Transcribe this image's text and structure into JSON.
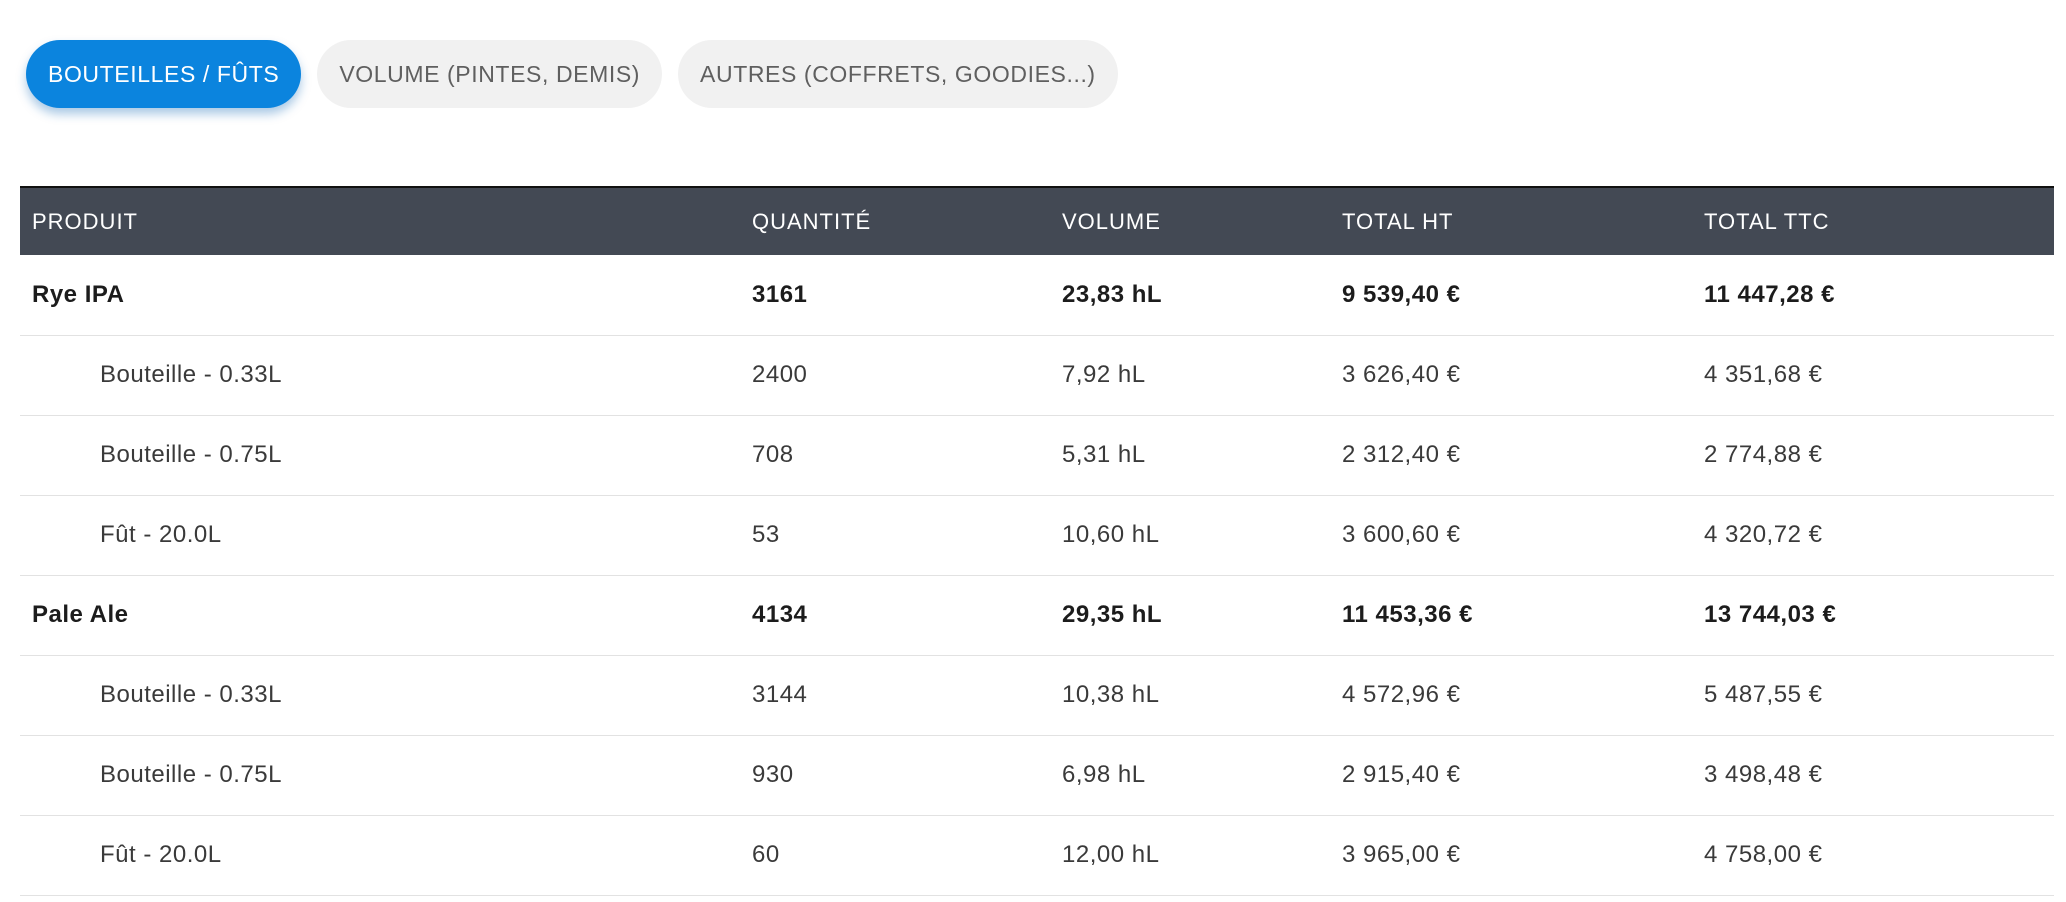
{
  "tabs": [
    {
      "label": "BOUTEILLES / FÛTS",
      "active": true
    },
    {
      "label": "VOLUME (PINTES, DEMIS)",
      "active": false
    },
    {
      "label": "AUTRES (COFFRETS, GOODIES...)",
      "active": false
    }
  ],
  "table": {
    "headers": [
      "PRODUIT",
      "QUANTITÉ",
      "VOLUME",
      "TOTAL HT",
      "TOTAL TTC"
    ],
    "rows": [
      {
        "type": "group",
        "cells": [
          "Rye IPA",
          "3161",
          "23,83 hL",
          "9 539,40 €",
          "11 447,28 €"
        ]
      },
      {
        "type": "item",
        "cells": [
          "Bouteille - 0.33L",
          "2400",
          "7,92 hL",
          "3 626,40 €",
          "4 351,68 €"
        ]
      },
      {
        "type": "item",
        "cells": [
          "Bouteille - 0.75L",
          "708",
          "5,31 hL",
          "2 312,40 €",
          "2 774,88 €"
        ]
      },
      {
        "type": "item",
        "cells": [
          "Fût - 20.0L",
          "53",
          "10,60 hL",
          "3 600,60 €",
          "4 320,72 €"
        ]
      },
      {
        "type": "group",
        "cells": [
          "Pale Ale",
          "4134",
          "29,35 hL",
          "11 453,36 €",
          "13 744,03 €"
        ]
      },
      {
        "type": "item",
        "cells": [
          "Bouteille - 0.33L",
          "3144",
          "10,38 hL",
          "4 572,96 €",
          "5 487,55 €"
        ]
      },
      {
        "type": "item",
        "cells": [
          "Bouteille - 0.75L",
          "930",
          "6,98 hL",
          "2 915,40 €",
          "3 498,48 €"
        ]
      },
      {
        "type": "item",
        "cells": [
          "Fût - 20.0L",
          "60",
          "12,00 hL",
          "3 965,00 €",
          "4 758,00 €"
        ]
      }
    ]
  },
  "colors": {
    "accent": "#0b84de",
    "header_bg": "#434954",
    "tab_bg": "#f1f1f1"
  }
}
